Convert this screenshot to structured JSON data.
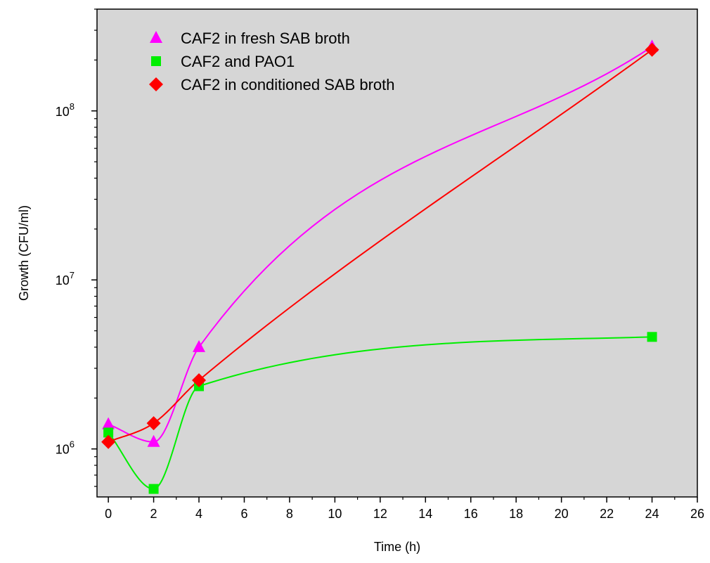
{
  "chart_data": {
    "type": "line",
    "title": "",
    "xlabel": "Time (h)",
    "ylabel": "Growth (CFU/ml)",
    "xlim": [
      -0.5,
      26
    ],
    "ylim": [
      520000,
      400000000
    ],
    "y_scale": "log",
    "x_ticks": [
      0,
      2,
      4,
      6,
      8,
      10,
      12,
      14,
      16,
      18,
      20,
      22,
      24,
      26
    ],
    "y_ticks": [
      {
        "base": "10",
        "exp": "6",
        "value": 1000000
      },
      {
        "base": "10",
        "exp": "7",
        "value": 10000000
      },
      {
        "base": "10",
        "exp": "8",
        "value": 100000000
      }
    ],
    "grid": false,
    "legend_position": "top-left",
    "background": "#d6d6d6",
    "series": [
      {
        "name": "CAF2 in fresh SAB broth",
        "marker": "triangle",
        "color": "#ff00ff",
        "x": [
          0,
          2,
          4,
          24
        ],
        "y": [
          1400000,
          1100000,
          4000000,
          240000000
        ]
      },
      {
        "name": "CAF2 and PAO1",
        "marker": "square",
        "color": "#00ee00",
        "x": [
          0,
          2,
          4,
          24
        ],
        "y": [
          1250000,
          580000,
          2350000,
          4600000
        ]
      },
      {
        "name": "CAF2 in conditioned SAB broth",
        "marker": "diamond",
        "color": "#ff0000",
        "x": [
          0,
          2,
          4,
          24
        ],
        "y": [
          1100000,
          1420000,
          2550000,
          230000000
        ]
      }
    ]
  }
}
